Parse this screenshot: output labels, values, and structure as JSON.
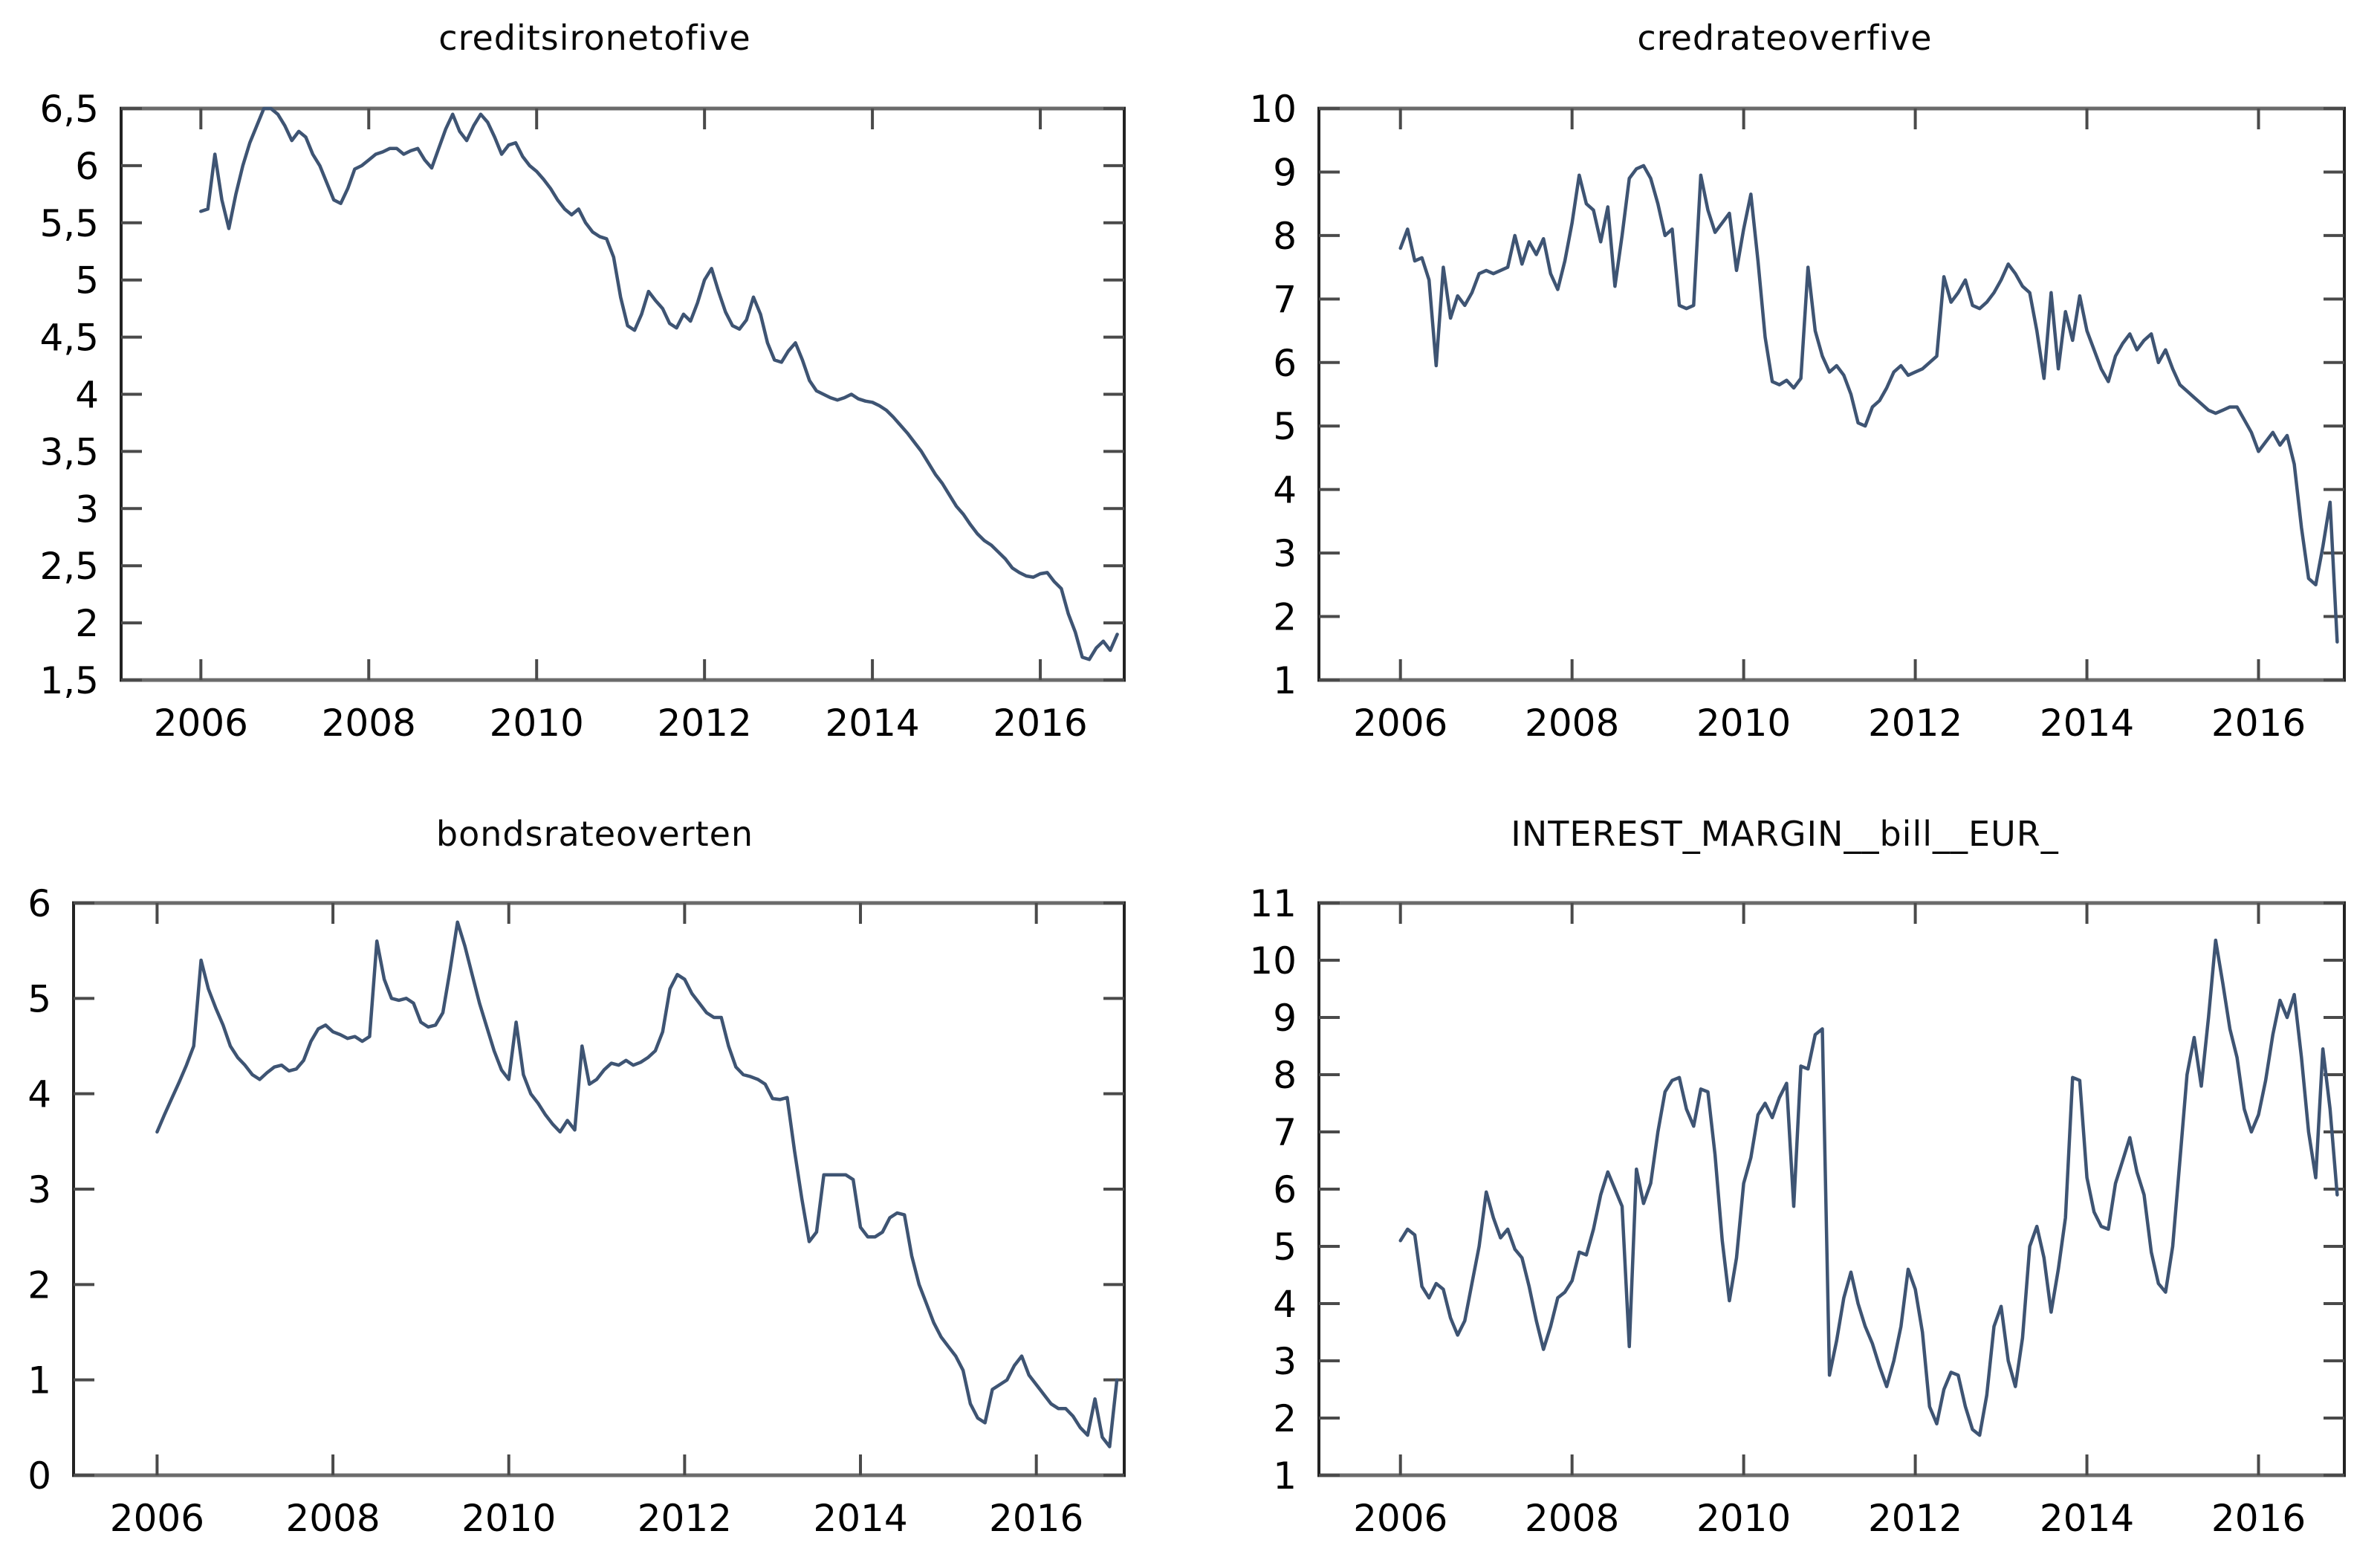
{
  "page": {
    "background": "#ffffff",
    "line_color": "#3e5473",
    "spine_dark": "#222222",
    "spine_gray": "#6b6b6b",
    "tick_color": "#4a4a4a",
    "label_color": "#000000"
  },
  "chart_data": [
    {
      "id": "creditsironetofive",
      "type": "line",
      "title": "creditsironetofive",
      "xlabel": "",
      "ylabel": "",
      "grid": false,
      "legend": "none",
      "x_start": 2006.0,
      "x_step_years": 0.0833333,
      "xlim": [
        2005.05,
        2017.0
      ],
      "xticks": [
        2006,
        2008,
        2010,
        2012,
        2014,
        2016
      ],
      "xtick_labels": [
        "2006",
        "2008",
        "2010",
        "2012",
        "2014",
        "2016"
      ],
      "ylim": [
        1.5,
        6.5
      ],
      "yticks": [
        1.5,
        2,
        2.5,
        3,
        3.5,
        4,
        4.5,
        5,
        5.5,
        6,
        6.5
      ],
      "ytick_labels": [
        "1,5",
        "2",
        "2,5",
        "3",
        "3,5",
        "4",
        "4,5",
        "5",
        "5,5",
        "6",
        "6,5"
      ],
      "values": [
        5.6,
        5.62,
        6.1,
        5.7,
        5.45,
        5.75,
        6.0,
        6.2,
        6.35,
        6.5,
        6.5,
        6.45,
        6.35,
        6.22,
        6.3,
        6.25,
        6.1,
        6.0,
        5.85,
        5.7,
        5.67,
        5.8,
        5.97,
        6.0,
        6.05,
        6.1,
        6.12,
        6.15,
        6.15,
        6.1,
        6.13,
        6.15,
        6.05,
        5.98,
        6.15,
        6.32,
        6.45,
        6.3,
        6.22,
        6.35,
        6.45,
        6.38,
        6.25,
        6.1,
        6.18,
        6.2,
        6.08,
        6.0,
        5.95,
        5.88,
        5.8,
        5.7,
        5.62,
        5.57,
        5.62,
        5.5,
        5.42,
        5.38,
        5.36,
        5.2,
        4.85,
        4.6,
        4.56,
        4.7,
        4.9,
        4.82,
        4.75,
        4.62,
        4.58,
        4.7,
        4.64,
        4.8,
        5.0,
        5.1,
        4.9,
        4.72,
        4.6,
        4.57,
        4.65,
        4.85,
        4.7,
        4.45,
        4.3,
        4.28,
        4.38,
        4.45,
        4.3,
        4.12,
        4.03,
        4.0,
        3.97,
        3.95,
        3.97,
        4.0,
        3.96,
        3.94,
        3.93,
        3.9,
        3.86,
        3.8,
        3.73,
        3.66,
        3.58,
        3.5,
        3.4,
        3.3,
        3.22,
        3.12,
        3.02,
        2.95,
        2.86,
        2.78,
        2.72,
        2.68,
        2.62,
        2.56,
        2.48,
        2.44,
        2.41,
        2.4,
        2.43,
        2.44,
        2.36,
        2.3,
        2.08,
        1.92,
        1.7,
        1.68,
        1.78,
        1.84,
        1.76,
        1.9
      ]
    },
    {
      "id": "credrateoverfive",
      "type": "line",
      "title": "credrateoverfive",
      "xlabel": "",
      "ylabel": "",
      "grid": false,
      "legend": "none",
      "x_start": 2006.0,
      "x_step_years": 0.0833333,
      "xlim": [
        2005.05,
        2017.0
      ],
      "xticks": [
        2006,
        2008,
        2010,
        2012,
        2014,
        2016
      ],
      "xtick_labels": [
        "2006",
        "2008",
        "2010",
        "2012",
        "2014",
        "2016"
      ],
      "ylim": [
        1,
        10
      ],
      "yticks": [
        1,
        2,
        3,
        4,
        5,
        6,
        7,
        8,
        9,
        10
      ],
      "ytick_labels": [
        "1",
        "2",
        "3",
        "4",
        "5",
        "6",
        "7",
        "8",
        "9",
        "10"
      ],
      "values": [
        7.8,
        8.1,
        7.6,
        7.65,
        7.3,
        5.95,
        7.5,
        6.7,
        7.05,
        6.9,
        7.1,
        7.4,
        7.45,
        7.4,
        7.45,
        7.5,
        8.0,
        7.55,
        7.9,
        7.7,
        7.95,
        7.4,
        7.15,
        7.6,
        8.2,
        8.95,
        8.5,
        8.4,
        7.9,
        8.45,
        7.2,
        8.0,
        8.9,
        9.05,
        9.1,
        8.9,
        8.5,
        8.0,
        8.1,
        6.9,
        6.85,
        6.9,
        8.95,
        8.4,
        8.05,
        8.2,
        8.35,
        7.45,
        8.1,
        8.65,
        7.6,
        6.4,
        5.7,
        5.65,
        5.72,
        5.6,
        5.75,
        7.5,
        6.5,
        6.1,
        5.85,
        5.95,
        5.8,
        5.5,
        5.05,
        5.0,
        5.3,
        5.4,
        5.6,
        5.85,
        5.95,
        5.8,
        5.85,
        5.9,
        6.0,
        6.1,
        7.35,
        6.95,
        7.1,
        7.3,
        6.9,
        6.85,
        6.95,
        7.1,
        7.3,
        7.55,
        7.4,
        7.2,
        7.1,
        6.5,
        5.75,
        7.1,
        5.9,
        6.8,
        6.35,
        7.05,
        6.5,
        6.2,
        5.9,
        5.7,
        6.1,
        6.3,
        6.45,
        6.2,
        6.35,
        6.45,
        6.0,
        6.2,
        5.9,
        5.65,
        5.55,
        5.45,
        5.35,
        5.25,
        5.2,
        5.25,
        5.3,
        5.3,
        5.1,
        4.9,
        4.6,
        4.75,
        4.9,
        4.7,
        4.85,
        4.4,
        3.4,
        2.6,
        2.5,
        3.1,
        3.8,
        1.6
      ]
    },
    {
      "id": "bondsrateoverten",
      "type": "line",
      "title": "bondsrateoverten",
      "xlabel": "",
      "ylabel": "",
      "grid": false,
      "legend": "none",
      "x_start": 2006.0,
      "x_step_years": 0.0833333,
      "xlim": [
        2005.05,
        2017.0
      ],
      "xticks": [
        2006,
        2008,
        2010,
        2012,
        2014,
        2016
      ],
      "xtick_labels": [
        "2006",
        "2008",
        "2010",
        "2012",
        "2014",
        "2016"
      ],
      "ylim": [
        0,
        6
      ],
      "yticks": [
        0,
        1,
        2,
        3,
        4,
        5,
        6
      ],
      "ytick_labels": [
        "0",
        "1",
        "2",
        "3",
        "4",
        "5",
        "6"
      ],
      "values": [
        3.6,
        3.78,
        3.95,
        4.12,
        4.3,
        4.5,
        5.4,
        5.1,
        4.9,
        4.72,
        4.5,
        4.38,
        4.3,
        4.2,
        4.15,
        4.22,
        4.28,
        4.3,
        4.24,
        4.26,
        4.35,
        4.55,
        4.68,
        4.72,
        4.65,
        4.62,
        4.58,
        4.6,
        4.55,
        4.6,
        5.6,
        5.2,
        5.0,
        4.98,
        5.0,
        4.95,
        4.75,
        4.7,
        4.72,
        4.85,
        5.3,
        5.8,
        5.55,
        5.25,
        4.95,
        4.7,
        4.45,
        4.25,
        4.15,
        4.75,
        4.2,
        4.0,
        3.9,
        3.78,
        3.68,
        3.6,
        3.72,
        3.62,
        4.5,
        4.1,
        4.15,
        4.25,
        4.32,
        4.3,
        4.35,
        4.3,
        4.33,
        4.38,
        4.45,
        4.65,
        5.1,
        5.25,
        5.2,
        5.05,
        4.95,
        4.85,
        4.8,
        4.8,
        4.5,
        4.28,
        4.2,
        4.18,
        4.15,
        4.1,
        3.95,
        3.94,
        3.96,
        3.4,
        2.9,
        2.45,
        2.55,
        3.15,
        3.15,
        3.15,
        3.15,
        3.1,
        2.6,
        2.5,
        2.5,
        2.55,
        2.7,
        2.75,
        2.73,
        2.3,
        2.0,
        1.8,
        1.6,
        1.45,
        1.35,
        1.25,
        1.1,
        0.75,
        0.6,
        0.55,
        0.9,
        0.95,
        1.0,
        1.15,
        1.25,
        1.05,
        0.95,
        0.85,
        0.75,
        0.7,
        0.7,
        0.62,
        0.5,
        0.42,
        0.8,
        0.4,
        0.3,
        1.0
      ]
    },
    {
      "id": "interest_margin_bill_eur",
      "type": "line",
      "title": "INTEREST_MARGIN__bill__EUR_",
      "xlabel": "",
      "ylabel": "",
      "grid": false,
      "legend": "none",
      "x_start": 2006.0,
      "x_step_years": 0.0833333,
      "xlim": [
        2005.05,
        2017.0
      ],
      "xticks": [
        2006,
        2008,
        2010,
        2012,
        2014,
        2016
      ],
      "xtick_labels": [
        "2006",
        "2008",
        "2010",
        "2012",
        "2014",
        "2016"
      ],
      "ylim": [
        1,
        11
      ],
      "yticks": [
        1,
        2,
        3,
        4,
        5,
        6,
        7,
        8,
        9,
        10,
        11
      ],
      "ytick_labels": [
        "1",
        "2",
        "3",
        "4",
        "5",
        "6",
        "7",
        "8",
        "9",
        "10",
        "11"
      ],
      "values": [
        5.1,
        5.3,
        5.2,
        4.3,
        4.1,
        4.35,
        4.25,
        3.75,
        3.45,
        3.7,
        4.35,
        5.0,
        5.95,
        5.5,
        5.15,
        5.3,
        4.95,
        4.8,
        4.3,
        3.7,
        3.2,
        3.6,
        4.1,
        4.2,
        4.4,
        4.9,
        4.85,
        5.3,
        5.9,
        6.3,
        6.0,
        5.7,
        3.25,
        6.35,
        5.75,
        6.1,
        7.0,
        7.7,
        7.9,
        7.95,
        7.4,
        7.1,
        7.75,
        7.7,
        6.6,
        5.1,
        4.05,
        4.8,
        6.1,
        6.55,
        7.3,
        7.5,
        7.25,
        7.6,
        7.85,
        5.7,
        8.15,
        8.1,
        8.7,
        8.8,
        2.75,
        3.35,
        4.1,
        4.55,
        4.0,
        3.6,
        3.3,
        2.9,
        2.55,
        3.0,
        3.6,
        4.6,
        4.25,
        3.5,
        2.2,
        1.9,
        2.5,
        2.8,
        2.75,
        2.2,
        1.8,
        1.7,
        2.4,
        3.6,
        3.95,
        3.0,
        2.55,
        3.4,
        5.0,
        5.35,
        4.8,
        3.85,
        4.6,
        5.5,
        7.95,
        7.9,
        6.2,
        5.6,
        5.35,
        5.3,
        6.1,
        6.5,
        6.9,
        6.3,
        5.9,
        4.9,
        4.35,
        4.2,
        5.0,
        6.5,
        8.0,
        8.65,
        7.8,
        9.0,
        10.35,
        9.6,
        8.8,
        8.3,
        7.4,
        7.0,
        7.3,
        7.9,
        8.7,
        9.3,
        9.0,
        9.4,
        8.3,
        7.0,
        6.2,
        8.45,
        7.4,
        5.9
      ]
    }
  ]
}
